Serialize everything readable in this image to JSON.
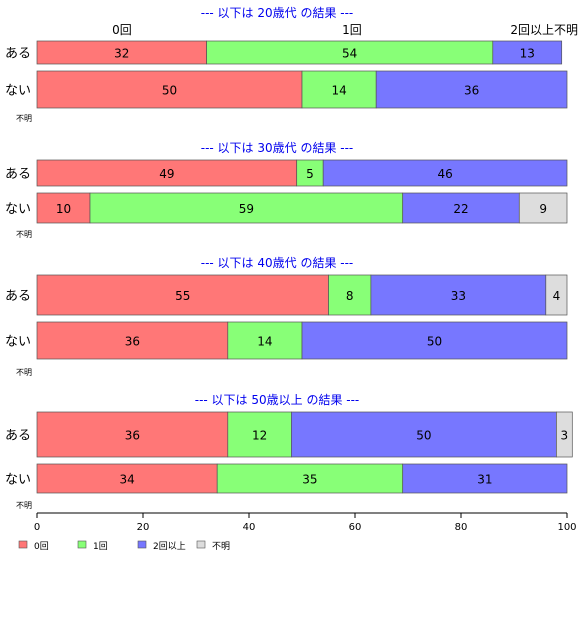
{
  "chart_data": {
    "type": "bar",
    "orientation": "horizontal",
    "stacked": true,
    "xlim": [
      0,
      100
    ],
    "x_ticks": [
      0,
      20,
      40,
      60,
      80,
      100
    ],
    "category_order": [
      "0回",
      "1回",
      "2回以上",
      "不明"
    ],
    "colors": {
      "0回": "#ff7777",
      "1回": "#88ff77",
      "2回以上": "#7777ff",
      "不明": "#dddddd",
      "title": "#0000ee"
    },
    "legend": {
      "placement": "bottom-left",
      "items": [
        "0回",
        "1回",
        "2回以上",
        "不明"
      ]
    },
    "top_segment_labels": [
      "0回",
      "1回",
      "2回以上不明"
    ],
    "groups": [
      {
        "title": "--- 以下は 20歳代 の結果 ---",
        "rows": [
          {
            "label": "ある",
            "values": [
              32,
              54,
              13,
              0
            ]
          },
          {
            "label": "ない",
            "values": [
              50,
              14,
              36,
              0
            ]
          },
          {
            "label": "不明",
            "values": [
              0,
              0,
              0,
              0
            ]
          }
        ]
      },
      {
        "title": "--- 以下は 30歳代 の結果 ---",
        "rows": [
          {
            "label": "ある",
            "values": [
              49,
              5,
              46,
              0
            ]
          },
          {
            "label": "ない",
            "values": [
              10,
              59,
              22,
              9
            ]
          },
          {
            "label": "不明",
            "values": [
              0,
              0,
              0,
              0
            ]
          }
        ]
      },
      {
        "title": "--- 以下は 40歳代 の結果 ---",
        "rows": [
          {
            "label": "ある",
            "values": [
              55,
              8,
              33,
              4
            ]
          },
          {
            "label": "ない",
            "values": [
              36,
              14,
              50,
              0
            ]
          },
          {
            "label": "不明",
            "values": [
              0,
              0,
              0,
              0
            ]
          }
        ]
      },
      {
        "title": "--- 以下は 50歳以上 の結果 ---",
        "rows": [
          {
            "label": "ある",
            "values": [
              36,
              12,
              50,
              3
            ]
          },
          {
            "label": "ない",
            "values": [
              34,
              35,
              31,
              0
            ]
          },
          {
            "label": "不明",
            "values": [
              0,
              0,
              0,
              0
            ]
          }
        ]
      }
    ]
  }
}
